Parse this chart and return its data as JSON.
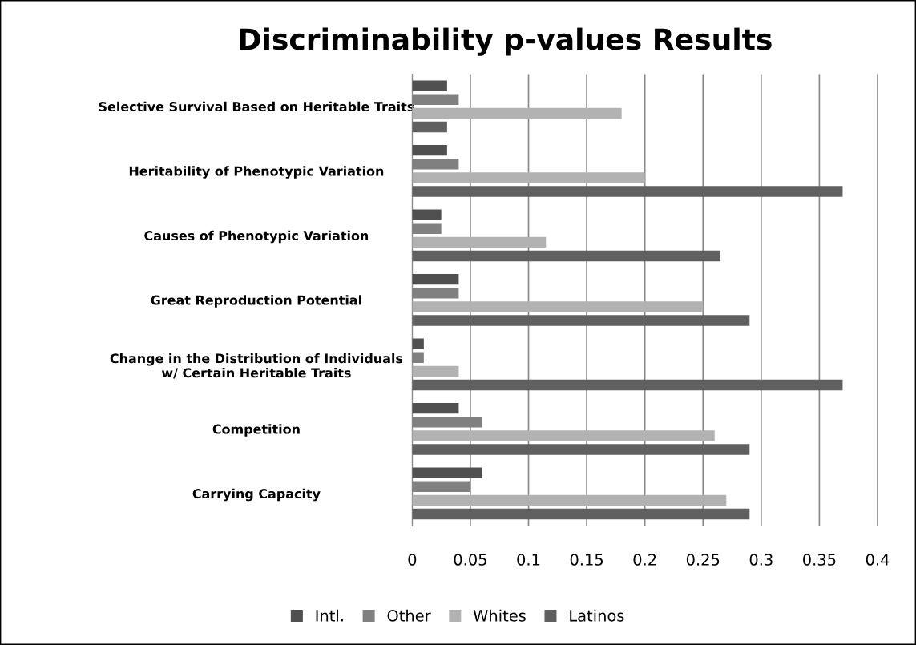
{
  "chart_data": {
    "type": "bar",
    "orientation": "horizontal",
    "title": "Discriminability p-values Results",
    "categories": [
      "Selective Survival Based on Heritable Traits",
      "Heritability of Phenotypic Variation",
      "Causes of Phenotypic Variation",
      "Great Reproduction Potential",
      "Change in the Distribution of Individuals\nw/ Certain Heritable Traits",
      "Competition",
      "Carrying Capacity"
    ],
    "series": [
      {
        "name": "Intl.",
        "color": "#505050",
        "values": [
          0.03,
          0.03,
          0.025,
          0.04,
          0.01,
          0.04,
          0.06
        ]
      },
      {
        "name": "Other",
        "color": "#808080",
        "values": [
          0.04,
          0.04,
          0.025,
          0.04,
          0.01,
          0.06,
          0.05
        ]
      },
      {
        "name": "Whites",
        "color": "#b2b2b2",
        "values": [
          0.18,
          0.2,
          0.115,
          0.25,
          0.04,
          0.26,
          0.27
        ]
      },
      {
        "name": "Latinos",
        "color": "#606060",
        "values": [
          0.03,
          0.37,
          0.265,
          0.29,
          0.37,
          0.29,
          0.29
        ]
      }
    ],
    "xlim": [
      0,
      0.4
    ],
    "xticks": [
      0,
      0.05,
      0.1,
      0.15,
      0.2,
      0.25,
      0.3,
      0.35,
      0.4
    ],
    "grid": "x",
    "legend": "bottom"
  }
}
